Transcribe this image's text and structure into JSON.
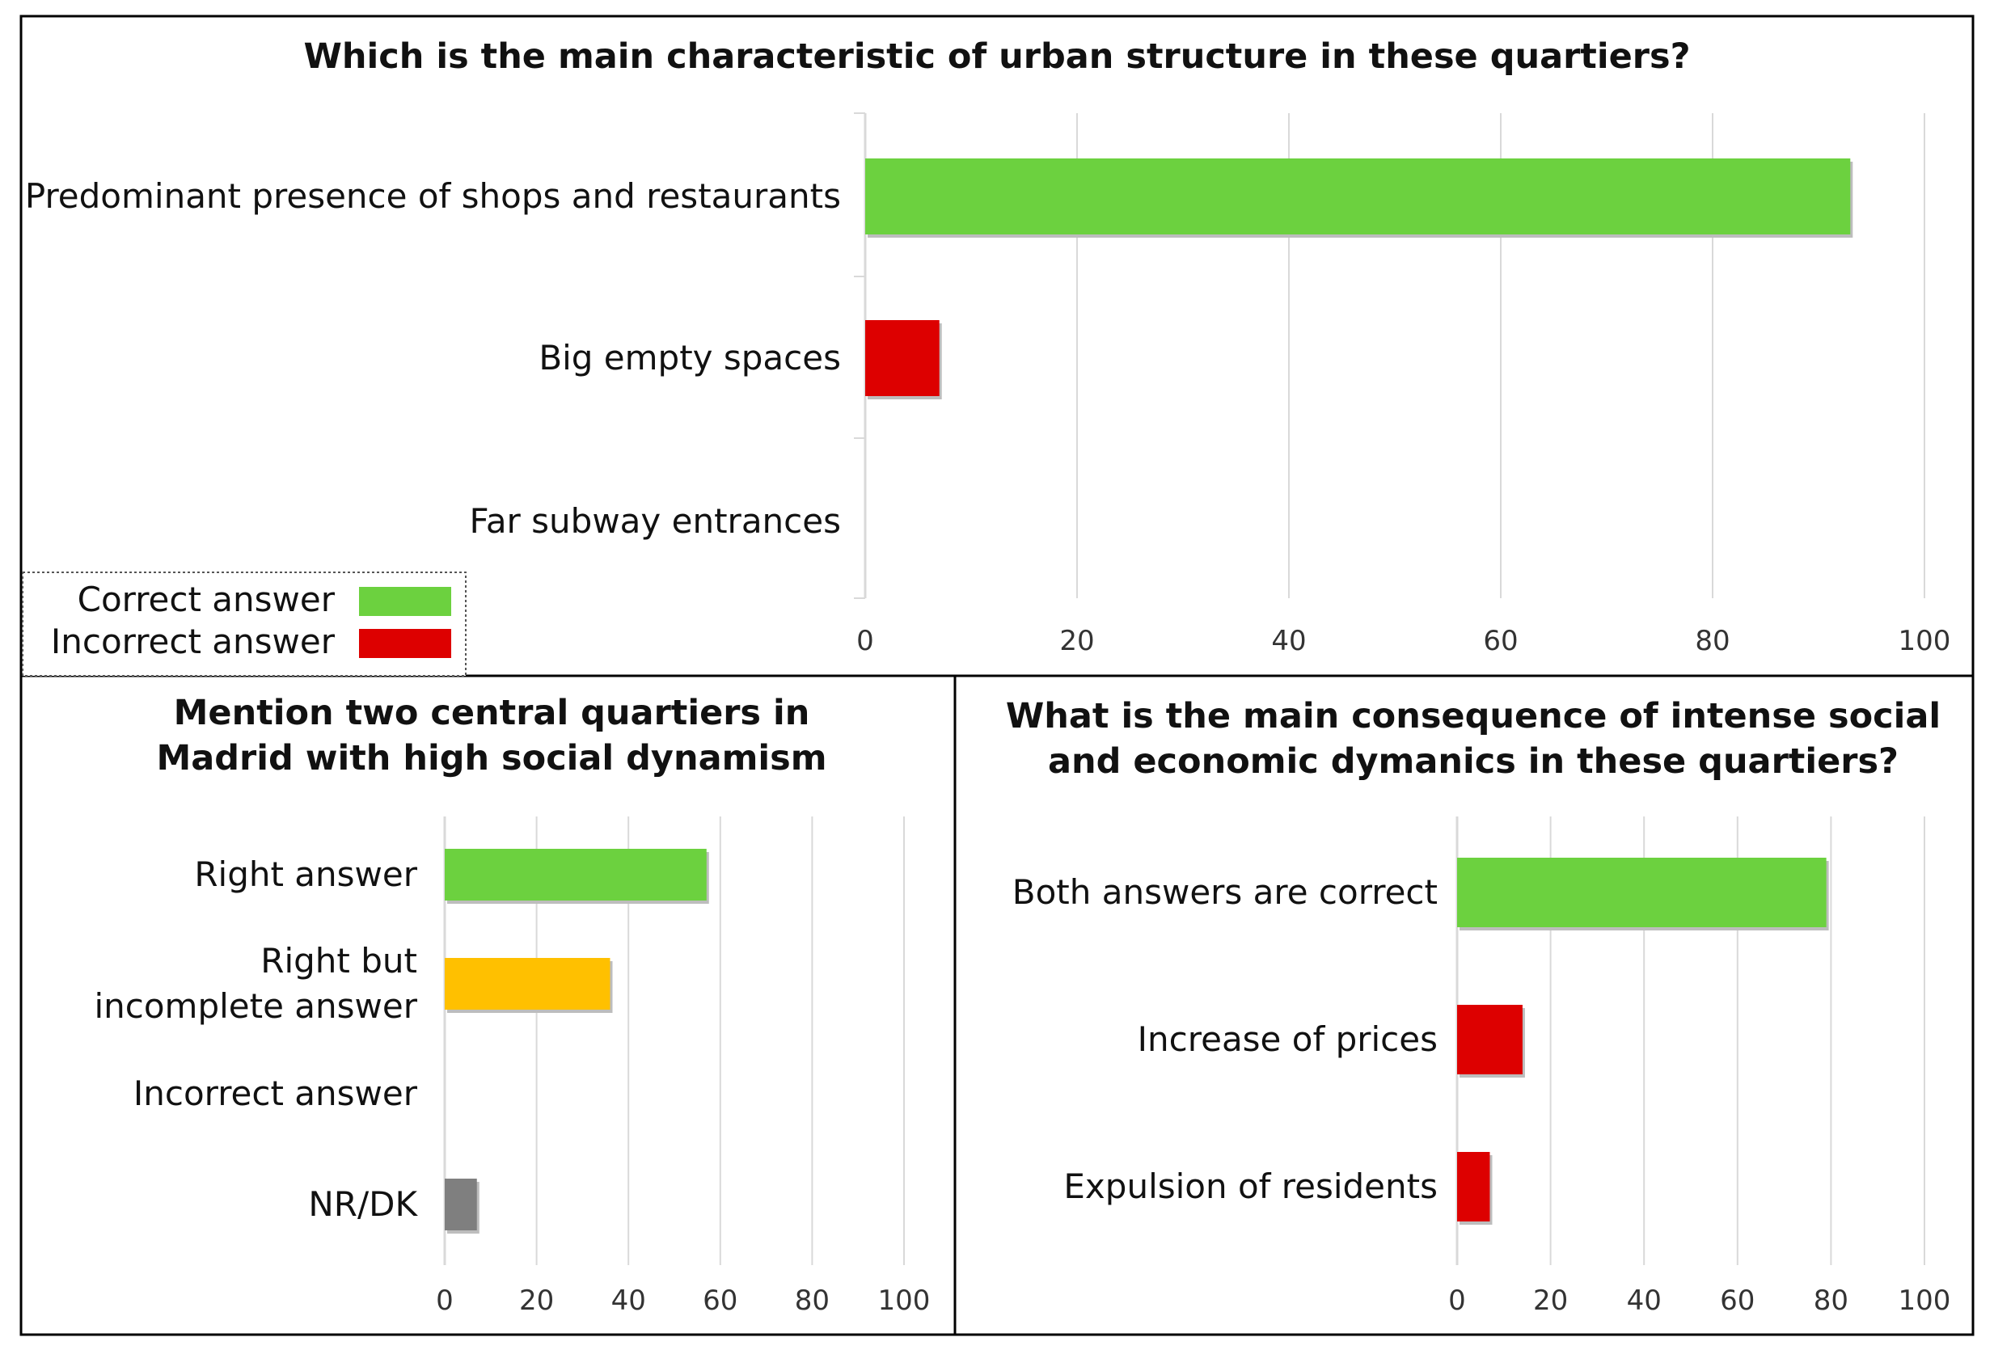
{
  "chart_data": [
    {
      "type": "bar",
      "orientation": "horizontal",
      "title": "Which is the main characteristic of urban structure in these quartiers?",
      "categories": [
        "Predominant presence of shops and restaurants",
        "Big empty spaces",
        "Far subway entrances"
      ],
      "values": [
        93,
        7,
        0
      ],
      "bar_colors": [
        "#6cd13f",
        "#dd0000",
        "#dd0000"
      ],
      "xlim": [
        0,
        100
      ],
      "xticks": [
        "0",
        "20",
        "40",
        "60",
        "80",
        "100"
      ],
      "grid": true,
      "legend": {
        "placement": "bottom-left",
        "entries": [
          {
            "label": "Correct answer",
            "color": "#6cd13f"
          },
          {
            "label": "Incorrect answer",
            "color": "#dd0000"
          }
        ]
      }
    },
    {
      "type": "bar",
      "orientation": "horizontal",
      "title_lines": [
        "Mention two central quartiers in",
        "Madrid with high social dynamism"
      ],
      "categories": [
        [
          "Right answer"
        ],
        [
          "Right but",
          "incomplete answer"
        ],
        [
          "Incorrect answer"
        ],
        [
          "NR/DK"
        ]
      ],
      "values": [
        57,
        36,
        0,
        7
      ],
      "bar_colors": [
        "#6cd13f",
        "#ffc000",
        "#dd0000",
        "#7f7f7f"
      ],
      "xlim": [
        0,
        100
      ],
      "xticks": [
        "0",
        "20",
        "40",
        "60",
        "80",
        "100"
      ],
      "grid": true
    },
    {
      "type": "bar",
      "orientation": "horizontal",
      "title_lines": [
        "What is the main consequence of intense social",
        "and economic dymanics in these quartiers?"
      ],
      "categories": [
        "Both answers are correct",
        "Increase of prices",
        "Expulsion of residents"
      ],
      "values": [
        79,
        14,
        7
      ],
      "bar_colors": [
        "#6cd13f",
        "#dd0000",
        "#dd0000"
      ],
      "xlim": [
        0,
        100
      ],
      "xticks": [
        "0",
        "20",
        "40",
        "60",
        "80",
        "100"
      ],
      "grid": true
    }
  ]
}
